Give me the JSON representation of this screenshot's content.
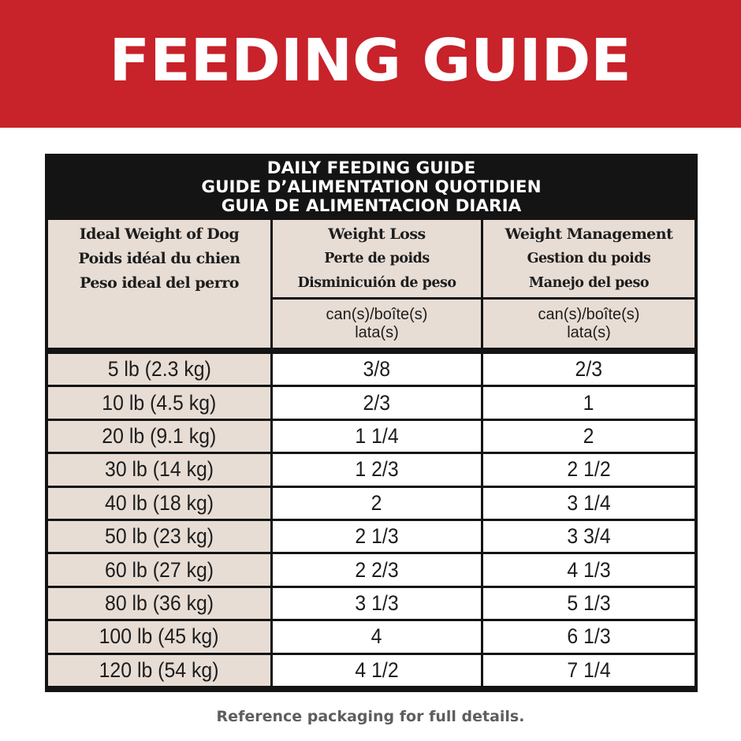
{
  "banner": {
    "title": "FEEDING GUIDE",
    "bg_color": "#c8222a"
  },
  "guide": {
    "title_lines": [
      "DAILY FEEDING GUIDE",
      "GUIDE D’ALIMENTATION QUOTIDIEN",
      "GUIA DE ALIMENTACION DIARIA"
    ],
    "columns": {
      "weight": [
        "Ideal Weight of Dog",
        "Poids idéal du chien",
        "Peso ideal del perro"
      ],
      "loss": [
        "Weight Loss",
        "Perte de poids",
        "Disminicuión de peso"
      ],
      "management": [
        "Weight Management",
        "Gestion du poids",
        "Manejo del peso"
      ]
    },
    "unit_lines": [
      "can(s)/boîte(s)",
      "lata(s)"
    ],
    "rows": [
      {
        "weight": "5 lb (2.3 kg)",
        "loss": "3/8",
        "management": "2/3"
      },
      {
        "weight": "10 lb (4.5 kg)",
        "loss": "2/3",
        "management": "1"
      },
      {
        "weight": "20 lb (9.1 kg)",
        "loss": "1 1/4",
        "management": "2"
      },
      {
        "weight": "30 lb (14 kg)",
        "loss": "1 2/3",
        "management": "2 1/2"
      },
      {
        "weight": "40 lb (18 kg)",
        "loss": "2",
        "management": "3 1/4"
      },
      {
        "weight": "50 lb (23 kg)",
        "loss": "2 1/3",
        "management": "3 3/4"
      },
      {
        "weight": "60 lb (27 kg)",
        "loss": "2 2/3",
        "management": "4 1/3"
      },
      {
        "weight": "80 lb (36 kg)",
        "loss": "3 1/3",
        "management": "5 1/3"
      },
      {
        "weight": "100 lb (45 kg)",
        "loss": "4",
        "management": "6 1/3"
      },
      {
        "weight": "120 lb (54 kg)",
        "loss": "4 1/2",
        "management": "7 1/4"
      }
    ]
  },
  "footnote": "Reference packaging for full details."
}
